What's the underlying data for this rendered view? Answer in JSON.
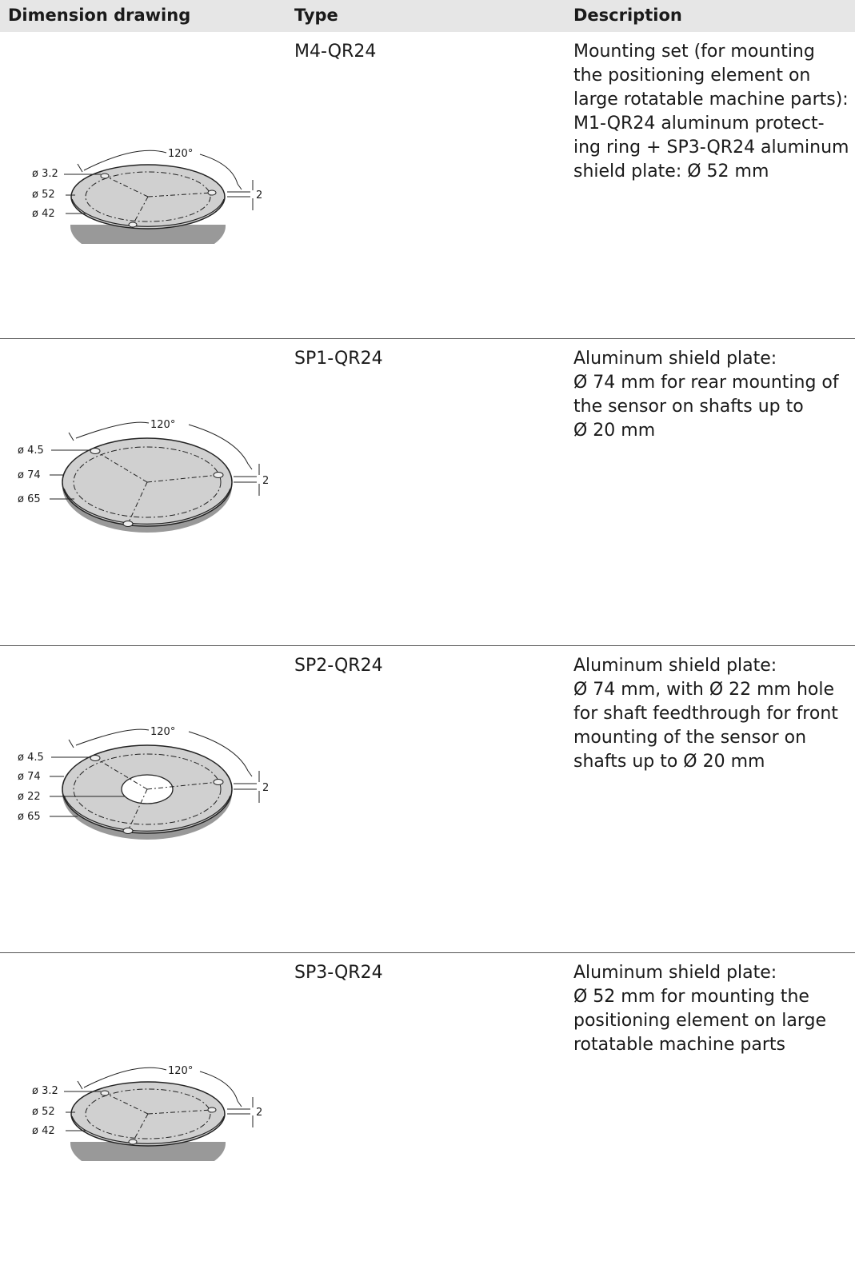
{
  "header": {
    "col_drawing": "Dimension drawing",
    "col_type": "Type",
    "col_description": "Description"
  },
  "rows": [
    {
      "type": "M4-QR24",
      "description": "Mounting set (for mounting\nthe positioning element on\nlarge rotatable machine parts):\nM1-QR24 aluminum protect-\ning ring + SP3-QR24 aluminum\nshield plate: Ø 52 mm",
      "drawing": {
        "angle": "120°",
        "labels": [
          "ø 3.2",
          "ø 52",
          "ø 42"
        ],
        "thickness": "2"
      }
    },
    {
      "type": "SP1-QR24",
      "description": "Aluminum shield plate:\nØ 74 mm for rear mounting of\nthe sensor on shafts up to\nØ 20 mm",
      "drawing": {
        "angle": "120°",
        "labels": [
          "ø 4.5",
          "ø 74",
          "ø 65"
        ],
        "thickness": "2"
      }
    },
    {
      "type": "SP2-QR24",
      "description": "Aluminum shield plate:\nØ 74 mm, with Ø 22 mm hole\nfor shaft feedthrough for front\nmounting of the sensor on\nshafts up to Ø 20 mm",
      "drawing": {
        "angle": "120°",
        "labels": [
          "ø 4.5",
          "ø 74",
          "ø 22",
          "ø 65"
        ],
        "thickness": "2"
      }
    },
    {
      "type": "SP3-QR24",
      "description": "Aluminum shield plate:\nØ 52 mm for mounting the\npositioning element on large\nrotatable machine parts",
      "drawing": {
        "angle": "120°",
        "labels": [
          "ø 3.2",
          "ø 52",
          "ø 42"
        ],
        "thickness": "2"
      }
    }
  ]
}
